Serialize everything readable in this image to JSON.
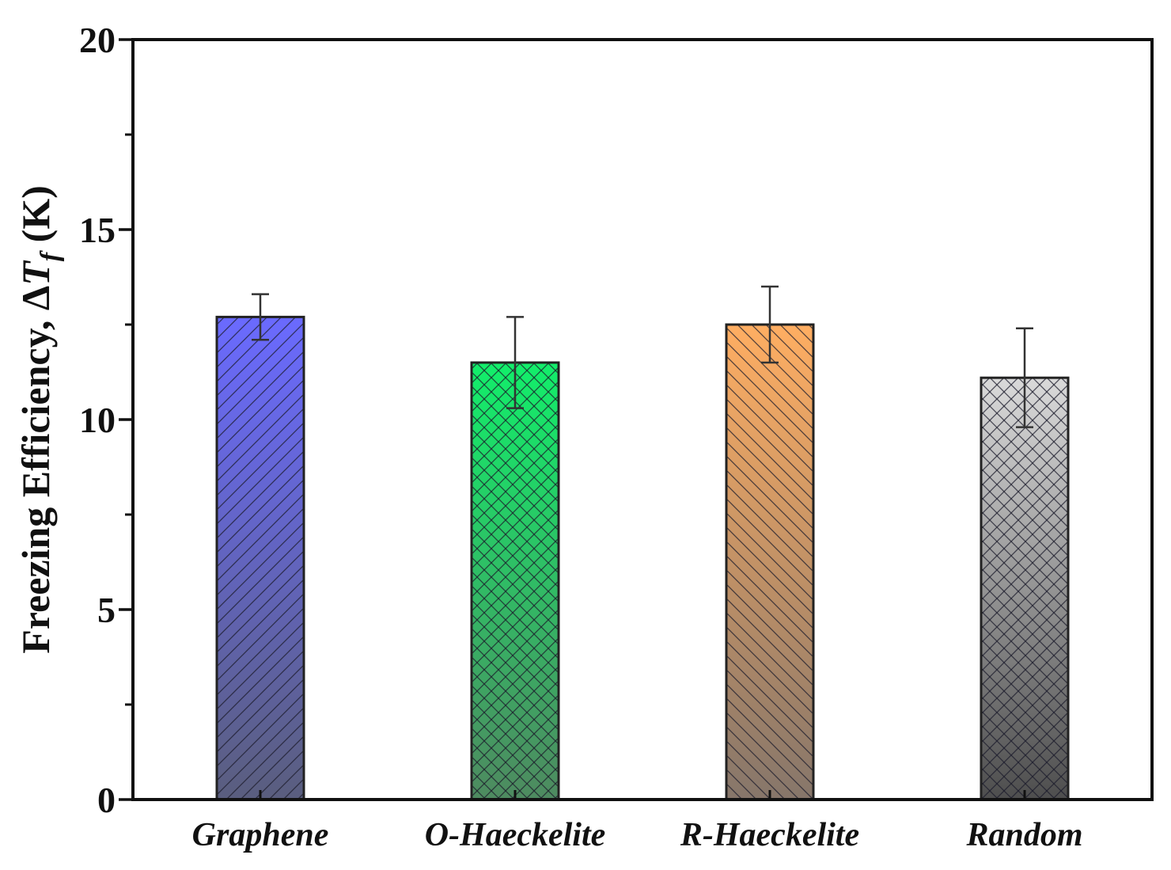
{
  "chart_data": {
    "type": "bar",
    "title": "",
    "xlabel": "",
    "ylabel": {
      "prefix": "Freezing Efficiency, Δ",
      "symbol": "T",
      "subscript": "f",
      "suffix": " (K)"
    },
    "ylim": [
      0,
      20
    ],
    "yticks": [
      0,
      5,
      10,
      15,
      20
    ],
    "yminor_ticks": [
      2.5,
      7.5,
      12.5,
      17.5
    ],
    "grid": false,
    "categories": [
      "Graphene",
      "O-Haeckelite",
      "R-Haeckelite",
      "Random"
    ],
    "values": [
      12.7,
      11.5,
      12.5,
      11.1
    ],
    "errors": [
      0.6,
      1.2,
      1.0,
      1.3
    ],
    "colors": [
      {
        "top": "#6a6aff",
        "bottom": "#5a5e7e",
        "hatch": "forward"
      },
      {
        "top": "#12ee6a",
        "bottom": "#4e8a60",
        "hatch": "cross"
      },
      {
        "top": "#ffae62",
        "bottom": "#86766a",
        "hatch": "back"
      },
      {
        "top": "#dadada",
        "bottom": "#4e4e4e",
        "hatch": "cross"
      }
    ]
  }
}
